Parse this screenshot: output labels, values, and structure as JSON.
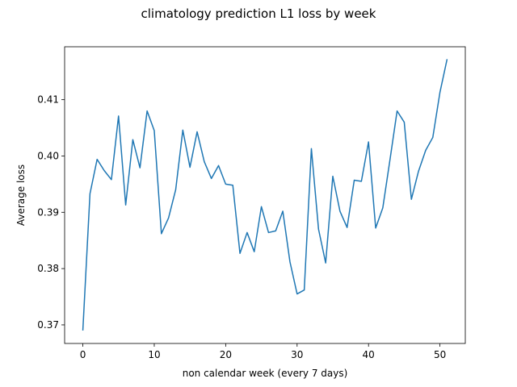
{
  "chart_data": {
    "type": "line",
    "title": "climatology prediction L1 loss by week",
    "xlabel": "non calendar week (every 7 days)",
    "ylabel": "Average loss",
    "xlim": [
      -2.55,
      53.55
    ],
    "ylim": [
      0.3667,
      0.4194
    ],
    "xticks": [
      0,
      10,
      20,
      30,
      40,
      50
    ],
    "yticks": [
      0.37,
      0.38,
      0.39,
      0.4,
      0.41
    ],
    "ytick_labels": [
      "0.37",
      "0.38",
      "0.39",
      "0.40",
      "0.41"
    ],
    "grid": false,
    "line_color": "#1f77b4",
    "series": [
      {
        "x": [
          0,
          1,
          2,
          3,
          4,
          5,
          6,
          7,
          8,
          9,
          10,
          11,
          12,
          13,
          14,
          15,
          16,
          17,
          18,
          19,
          20,
          21,
          22,
          23,
          24,
          25,
          26,
          27,
          28,
          29,
          30,
          31,
          32,
          33,
          34,
          35,
          36,
          37,
          38,
          39,
          40,
          41,
          42,
          43,
          44,
          45,
          46,
          47,
          48,
          49,
          50,
          51
        ],
        "values": [
          0.369,
          0.3933,
          0.3994,
          0.3974,
          0.3958,
          0.4071,
          0.3913,
          0.4029,
          0.3979,
          0.408,
          0.4045,
          0.3862,
          0.389,
          0.394,
          0.4046,
          0.398,
          0.4043,
          0.399,
          0.396,
          0.3983,
          0.395,
          0.3948,
          0.3827,
          0.3864,
          0.383,
          0.391,
          0.3864,
          0.3867,
          0.3902,
          0.3812,
          0.3755,
          0.3762,
          0.4013,
          0.387,
          0.381,
          0.3964,
          0.3902,
          0.3873,
          0.3957,
          0.3955,
          0.4025,
          0.3872,
          0.3908,
          0.3993,
          0.408,
          0.406,
          0.3923,
          0.3973,
          0.401,
          0.4033,
          0.4113,
          0.4172
        ]
      }
    ]
  }
}
